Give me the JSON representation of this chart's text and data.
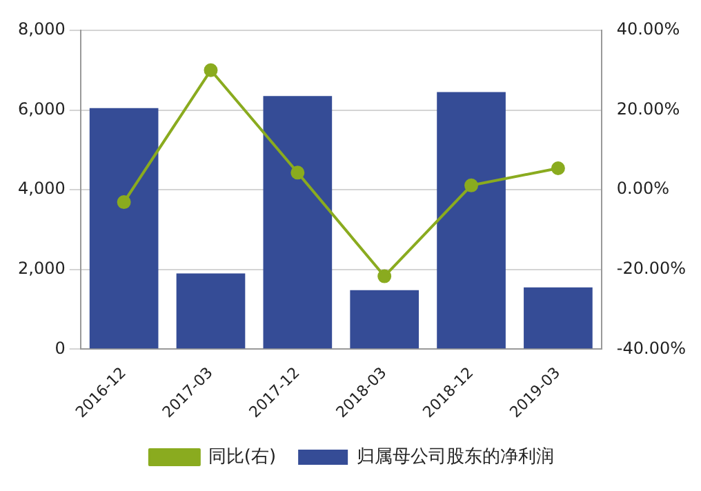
{
  "chart_data": {
    "type": "bar",
    "categories": [
      "2016-12",
      "2017-03",
      "2017-12",
      "2018-03",
      "2018-12",
      "2019-03"
    ],
    "series": [
      {
        "name": "归属母公司股东的净利润",
        "color": "#354c96",
        "values": [
          6050,
          1900,
          6350,
          1480,
          6450,
          1550
        ]
      },
      {
        "name": "同比(右)",
        "type": "line",
        "axis": "y2",
        "color": "#8aab1f",
        "values": [
          -3.1,
          30.0,
          4.3,
          -21.7,
          1.1,
          5.4
        ]
      }
    ],
    "ylim": [
      0,
      8000
    ],
    "yticks": [
      {
        "value": 0,
        "label": "0"
      },
      {
        "value": 2000,
        "label": "2,000"
      },
      {
        "value": 4000,
        "label": "4,000"
      },
      {
        "value": 6000,
        "label": "6,000"
      },
      {
        "value": 8000,
        "label": "8,000"
      }
    ],
    "y2lim": [
      -40,
      40
    ],
    "y2ticks": [
      {
        "value": -40,
        "label": "-40.00%"
      },
      {
        "value": -20,
        "label": "-20.00%"
      },
      {
        "value": 0,
        "label": "0.00%"
      },
      {
        "value": 20,
        "label": "20.00%"
      },
      {
        "value": 40,
        "label": "40.00%"
      }
    ],
    "grid": "y",
    "legend": "bottom",
    "marker": "circle"
  }
}
